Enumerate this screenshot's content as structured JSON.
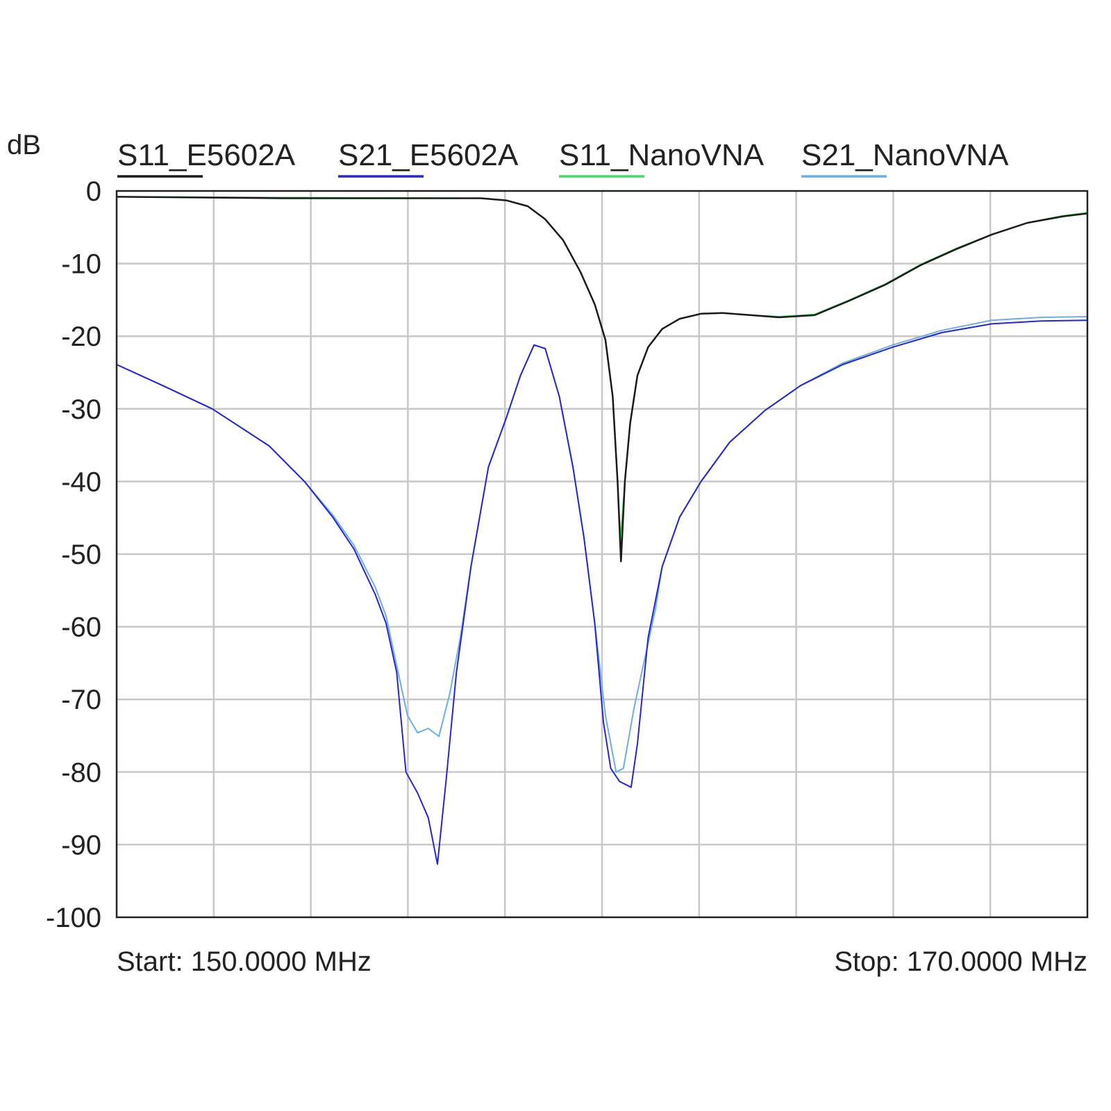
{
  "chart_data": {
    "type": "line",
    "ylabel": "dB",
    "xlim": [
      150,
      170
    ],
    "ylim": [
      -100,
      0
    ],
    "x_unit": "MHz",
    "yticks": [
      0,
      -10,
      -20,
      -30,
      -40,
      -50,
      -60,
      -70,
      -80,
      -90,
      -100
    ],
    "x_divisions": 10,
    "grid": true,
    "legend_position": "top",
    "start_label": "Start: 150.0000 MHz",
    "stop_label": "Stop: 170.0000 MHz",
    "series": [
      {
        "name": "S11_E5602A",
        "color": "#1a1a1a",
        "x": [
          150,
          153.4,
          157.5,
          158.03,
          158.47,
          158.83,
          159.2,
          159.56,
          159.85,
          160.07,
          160.22,
          160.32,
          160.39,
          160.47,
          160.58,
          160.73,
          160.95,
          161.24,
          161.6,
          162.04,
          162.48,
          163.07,
          163.65,
          164.38,
          165.1,
          165.84,
          166.57,
          167.3,
          168.03,
          168.76,
          169.5,
          170
        ],
        "y": [
          -0.8,
          -1,
          -1,
          -1.3,
          -2.1,
          -3.9,
          -6.8,
          -11.2,
          -15.6,
          -20.5,
          -28.3,
          -40,
          -51,
          -40,
          -32,
          -25.4,
          -21.5,
          -19,
          -17.6,
          -16.9,
          -16.8,
          -17.1,
          -17.4,
          -17.1,
          -15.1,
          -12.9,
          -10.2,
          -8,
          -6,
          -4.4,
          -3.5,
          -3.1
        ]
      },
      {
        "name": "S21_E5602A",
        "color": "#2626d0",
        "x": [
          150,
          150.95,
          151.97,
          153.14,
          153.87,
          154.45,
          154.89,
          155.33,
          155.55,
          155.77,
          155.96,
          156.2,
          156.42,
          156.61,
          156.79,
          157,
          157.3,
          157.66,
          158.03,
          158.32,
          158.6,
          158.83,
          159.12,
          159.4,
          159.63,
          159.85,
          160.03,
          160.18,
          160.36,
          160.6,
          160.73,
          160.95,
          161.24,
          161.6,
          162.04,
          162.63,
          163.36,
          164.09,
          164.96,
          165.99,
          167,
          168.03,
          169.05,
          170
        ],
        "y": [
          -23.9,
          -26.8,
          -30,
          -35.1,
          -40,
          -44.9,
          -49.3,
          -55.6,
          -59.5,
          -66.3,
          -80,
          -82.9,
          -86.3,
          -92.7,
          -81,
          -66.3,
          -51.7,
          -38,
          -31.2,
          -25.4,
          -21.2,
          -21.7,
          -28.3,
          -38,
          -47.8,
          -59.5,
          -73.2,
          -79.5,
          -81.3,
          -82.1,
          -76.1,
          -61.5,
          -51.7,
          -44.9,
          -40,
          -34.6,
          -30.2,
          -26.8,
          -23.9,
          -21.5,
          -19.5,
          -18.3,
          -17.9,
          -17.8
        ]
      },
      {
        "name": "S11_NanoVNA",
        "color": "#3ee060",
        "x": [
          150,
          153.4,
          157.5,
          158.03,
          158.47,
          158.83,
          159.2,
          159.56,
          159.85,
          160.07,
          160.22,
          160.32,
          160.38,
          160.47,
          160.58,
          160.73,
          160.95,
          161.24,
          161.6,
          162.04,
          162.48,
          163.07,
          163.65,
          164.38,
          165.1,
          165.84,
          166.57,
          167.3,
          168.03,
          168.76,
          169.5,
          170
        ],
        "y": [
          -0.8,
          -0.9,
          -1,
          -1.3,
          -2.1,
          -3.9,
          -6.8,
          -11.2,
          -15.6,
          -20.5,
          -28.3,
          -40,
          -48,
          -40,
          -32,
          -25.4,
          -21.5,
          -19,
          -17.6,
          -16.9,
          -16.8,
          -17.1,
          -17.3,
          -17,
          -15,
          -12.8,
          -10.1,
          -7.9,
          -6,
          -4.4,
          -3.4,
          -3
        ]
      },
      {
        "name": "S21_NanoVNA",
        "color": "#6aaee8",
        "x": [
          150,
          150.95,
          151.97,
          153.14,
          153.87,
          154.45,
          154.89,
          155.33,
          155.55,
          155.99,
          156.2,
          156.42,
          156.64,
          156.86,
          157.08,
          157.3,
          157.66,
          158.03,
          158.32,
          158.6,
          158.83,
          159.12,
          159.4,
          159.63,
          159.85,
          160.07,
          160.29,
          160.44,
          160.66,
          160.88,
          161.1,
          161.24,
          161.6,
          162.04,
          162.63,
          163.36,
          164.09,
          164.96,
          165.99,
          167,
          168.03,
          169.05,
          170
        ],
        "y": [
          -23.9,
          -26.8,
          -30,
          -35.1,
          -40,
          -44.6,
          -48.8,
          -54.6,
          -58.5,
          -72.2,
          -74.6,
          -74,
          -75.1,
          -69.3,
          -61.5,
          -51.7,
          -38,
          -31.2,
          -25.4,
          -21.2,
          -21.7,
          -28.3,
          -38,
          -47.8,
          -59.5,
          -72.2,
          -80,
          -79.5,
          -71.2,
          -64.4,
          -57.6,
          -51.7,
          -44.9,
          -40,
          -34.6,
          -30.2,
          -26.8,
          -23.7,
          -21.2,
          -19.2,
          -17.8,
          -17.4,
          -17.3
        ]
      }
    ]
  }
}
